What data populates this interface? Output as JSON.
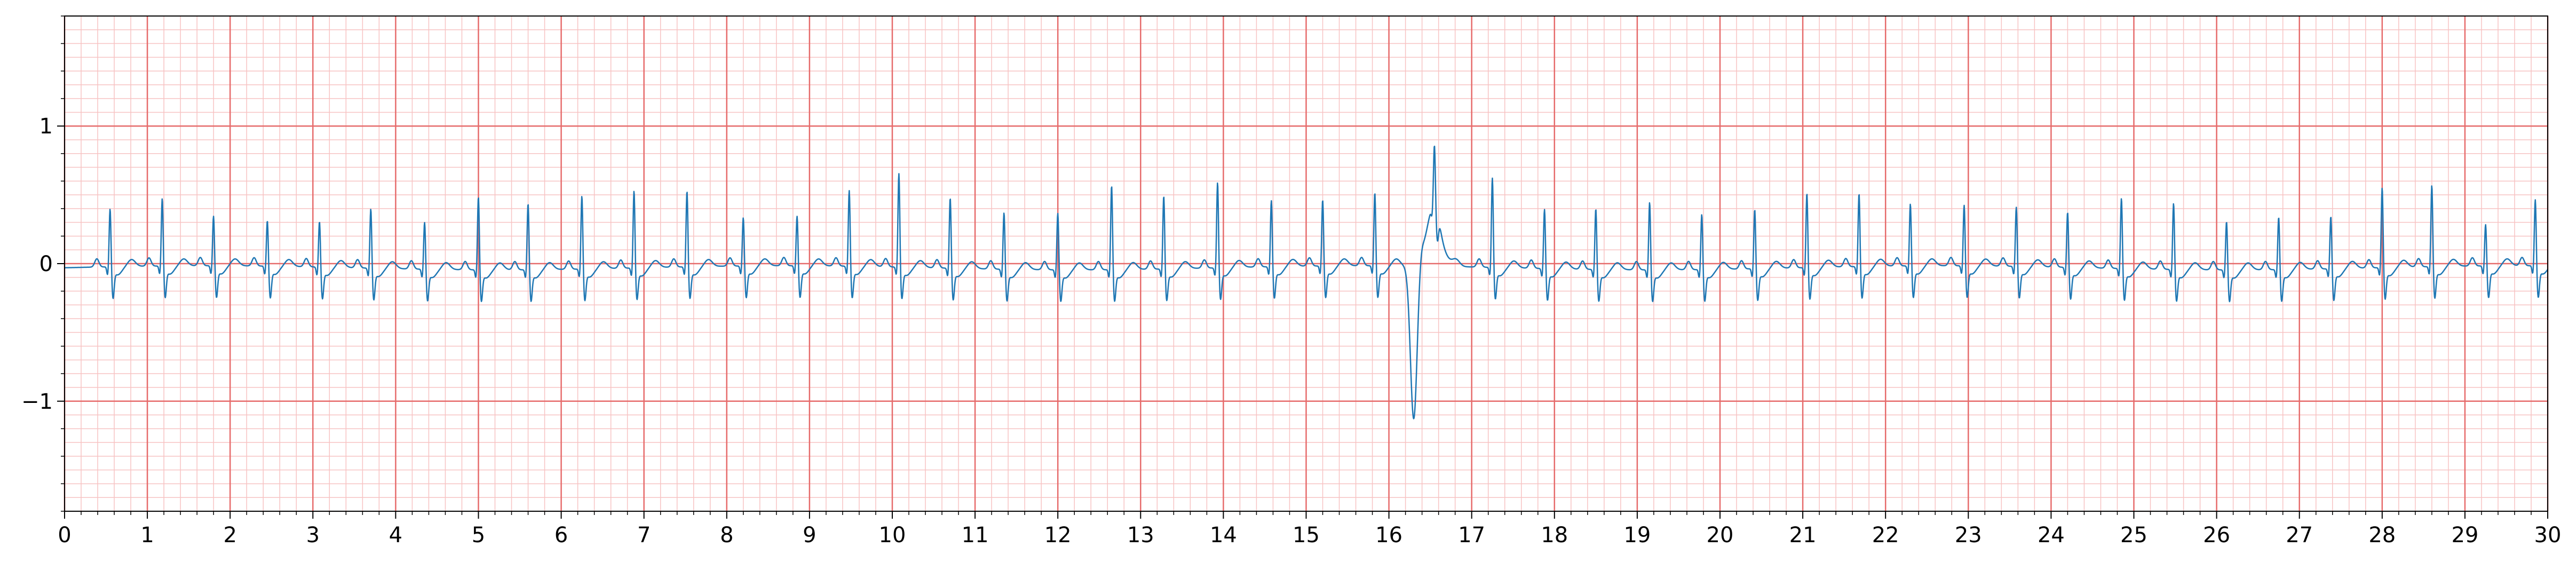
{
  "chart_data": {
    "type": "line",
    "title": "",
    "xlabel": "",
    "ylabel": "",
    "xlim": [
      0,
      30
    ],
    "ylim": [
      -1.8,
      1.8
    ],
    "grid": true,
    "x_ticks": [
      0,
      1,
      2,
      3,
      4,
      5,
      6,
      7,
      8,
      9,
      10,
      11,
      12,
      13,
      14,
      15,
      16,
      17,
      18,
      19,
      20,
      21,
      22,
      23,
      24,
      25,
      26,
      27,
      28,
      29,
      30
    ],
    "x_tick_labels": [
      "0",
      "1",
      "2",
      "3",
      "4",
      "5",
      "6",
      "7",
      "8",
      "9",
      "10",
      "11",
      "12",
      "13",
      "14",
      "15",
      "16",
      "17",
      "18",
      "19",
      "20",
      "21",
      "22",
      "23",
      "24",
      "25",
      "26",
      "27",
      "28",
      "29",
      "30"
    ],
    "y_ticks": [
      -1,
      0,
      1
    ],
    "y_tick_labels": [
      "−1",
      "0",
      "1"
    ],
    "colors": {
      "trace": "#1f77b4",
      "major_grid": "#e66b6b",
      "minor_grid": "#f7c3c3"
    },
    "series": [
      {
        "beat_times": [
          0.55,
          1.18,
          1.8,
          2.45,
          3.08,
          3.7,
          4.35,
          5.0,
          5.6,
          6.25,
          6.88,
          7.52,
          8.2,
          8.85,
          9.48,
          10.08,
          10.7,
          11.35,
          12.0,
          12.65,
          13.28,
          13.93,
          14.58,
          15.2,
          15.83,
          16.55,
          17.25,
          17.88,
          18.5,
          19.15,
          19.78,
          20.42,
          21.05,
          21.68,
          22.3,
          22.95,
          23.58,
          24.2,
          24.85,
          25.48,
          26.12,
          26.75,
          27.38,
          28.0,
          28.6,
          29.25,
          29.85
        ],
        "r_amplitudes": [
          0.44,
          0.51,
          0.38,
          0.35,
          0.35,
          0.45,
          0.36,
          0.55,
          0.5,
          0.55,
          0.58,
          0.57,
          0.37,
          0.38,
          0.57,
          0.7,
          0.53,
          0.43,
          0.43,
          0.63,
          0.55,
          0.64,
          0.5,
          0.5,
          0.55,
          0.45,
          0.67,
          0.45,
          0.46,
          0.51,
          0.42,
          0.45,
          0.56,
          0.55,
          0.47,
          0.46,
          0.45,
          0.42,
          0.53,
          0.5,
          0.37,
          0.4,
          0.4,
          0.6,
          0.61,
          0.32,
          0.5
        ],
        "pvc": {
          "t": 16.3,
          "min": -1.12,
          "t_wave_max": 0.45
        }
      }
    ]
  }
}
